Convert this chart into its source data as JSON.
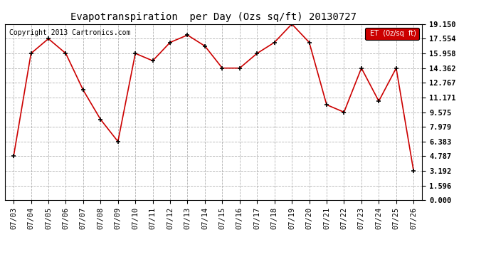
{
  "title": "Evapotranspiration  per Day (Ozs sq/ft) 20130727",
  "copyright": "Copyright 2013 Cartronics.com",
  "legend_label": "ET  (0z/sq  ft)",
  "x_labels": [
    "07/03",
    "07/04",
    "07/05",
    "07/06",
    "07/07",
    "07/08",
    "07/09",
    "07/10",
    "07/11",
    "07/12",
    "07/13",
    "07/14",
    "07/15",
    "07/16",
    "07/17",
    "07/18",
    "07/19",
    "07/20",
    "07/21",
    "07/22",
    "07/23",
    "07/24",
    "07/25",
    "07/26"
  ],
  "y_values": [
    4.787,
    15.958,
    17.554,
    15.958,
    11.975,
    8.782,
    6.383,
    15.958,
    15.16,
    17.155,
    17.952,
    16.756,
    14.362,
    14.362,
    15.958,
    17.155,
    19.15,
    17.155,
    10.378,
    9.575,
    14.362,
    10.773,
    14.362,
    3.192
  ],
  "y_ticks": [
    0.0,
    1.596,
    3.192,
    4.787,
    6.383,
    7.979,
    9.575,
    11.171,
    12.767,
    14.362,
    15.958,
    17.554,
    19.15
  ],
  "ylim": [
    0.0,
    19.15
  ],
  "background_color": "#ffffff",
  "plot_bg_color": "#ffffff",
  "grid_color": "#aaaaaa",
  "line_color": "#cc0000",
  "marker_color": "#000000",
  "title_fontsize": 10,
  "copyright_fontsize": 7,
  "tick_fontsize": 7.5,
  "legend_bg": "#cc0000",
  "legend_text_color": "#ffffff"
}
